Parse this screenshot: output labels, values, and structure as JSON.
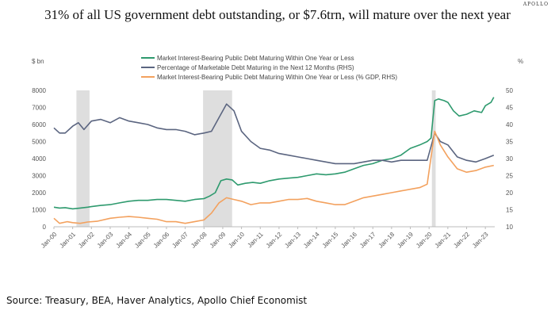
{
  "brand": "APOLLO",
  "title": "31% of all US government debt outstanding, or $7.6trn, will mature over the next year",
  "source": "Source: Treasury, BEA, Haver Analytics, Apollo Chief Economist",
  "chart_data": {
    "type": "line",
    "left_unit": "$ bn",
    "right_unit": "%",
    "left_ylim": [
      0,
      8000
    ],
    "left_ticks": [
      "0",
      "1000",
      "2000",
      "3000",
      "4000",
      "5000",
      "6000",
      "7000",
      "8000"
    ],
    "right_ylim": [
      10,
      50
    ],
    "right_ticks": [
      "10",
      "15",
      "20",
      "25",
      "30",
      "35",
      "40",
      "45",
      "50"
    ],
    "xlim": [
      2000,
      2023.5
    ],
    "x_ticks": [
      "Jan-00",
      "Jan-01",
      "Jan-02",
      "Jan-03",
      "Jan-04",
      "Jan-05",
      "Jan-06",
      "Jan-07",
      "Jan-08",
      "Jan-09",
      "Jan-10",
      "Jan-11",
      "Jan-12",
      "Jan-13",
      "Jan-14",
      "Jan-15",
      "Jan-16",
      "Jan-17",
      "Jan-18",
      "Jan-19",
      "Jan-20",
      "Jan-21",
      "Jan-22",
      "Jan-23"
    ],
    "grid": false,
    "legend_position": "top",
    "recessions": [
      [
        2001.2,
        2001.9
      ],
      [
        2007.95,
        2009.5
      ],
      [
        2020.15,
        2020.35
      ]
    ],
    "series": [
      {
        "name": "Market Interest-Bearing Public Debt Maturing Within One Year or Less",
        "axis": "left",
        "color": "#2e9a6e",
        "x": [
          2000,
          2000.3,
          2000.6,
          2001,
          2001.4,
          2001.8,
          2002,
          2002.5,
          2003,
          2003.5,
          2004,
          2004.5,
          2005,
          2005.5,
          2006,
          2006.5,
          2007,
          2007.5,
          2008,
          2008.3,
          2008.6,
          2008.9,
          2009.2,
          2009.5,
          2009.8,
          2010.2,
          2010.6,
          2011,
          2011.5,
          2012,
          2012.5,
          2013,
          2013.5,
          2014,
          2014.5,
          2015,
          2015.5,
          2016,
          2016.5,
          2017,
          2017.5,
          2018,
          2018.5,
          2019,
          2019.5,
          2019.9,
          2020.1,
          2020.3,
          2020.5,
          2020.8,
          2021,
          2021.3,
          2021.6,
          2022,
          2022.4,
          2022.8,
          2023,
          2023.3,
          2023.45
        ],
        "values": [
          1150,
          1100,
          1120,
          1050,
          1100,
          1150,
          1180,
          1250,
          1300,
          1400,
          1500,
          1550,
          1550,
          1600,
          1600,
          1550,
          1500,
          1600,
          1650,
          1800,
          2000,
          2700,
          2800,
          2750,
          2450,
          2550,
          2600,
          2550,
          2700,
          2800,
          2850,
          2900,
          3000,
          3100,
          3050,
          3100,
          3200,
          3400,
          3600,
          3700,
          3900,
          4000,
          4200,
          4600,
          4800,
          5000,
          5200,
          7400,
          7500,
          7400,
          7300,
          6800,
          6500,
          6600,
          6800,
          6700,
          7100,
          7300,
          7600
        ]
      },
      {
        "name": "Percentage of Marketable Debt Maturing in the Next 12 Months (RHS)",
        "axis": "right",
        "color": "#5b6580",
        "x": [
          2000,
          2000.3,
          2000.6,
          2001,
          2001.3,
          2001.6,
          2002,
          2002.5,
          2003,
          2003.5,
          2004,
          2004.5,
          2005,
          2005.5,
          2006,
          2006.5,
          2007,
          2007.5,
          2008,
          2008.4,
          2008.8,
          2009.2,
          2009.6,
          2010,
          2010.5,
          2011,
          2011.5,
          2012,
          2012.5,
          2013,
          2013.5,
          2014,
          2014.5,
          2015,
          2015.5,
          2016,
          2016.5,
          2017,
          2017.5,
          2018,
          2018.5,
          2019,
          2019.5,
          2019.9,
          2020.3,
          2020.6,
          2021,
          2021.5,
          2022,
          2022.5,
          2023,
          2023.45
        ],
        "values": [
          39,
          37.5,
          37.5,
          39.5,
          40.5,
          38.5,
          41,
          41.5,
          40.5,
          42,
          41,
          40.5,
          40,
          39,
          38.5,
          38.5,
          38,
          37,
          37.5,
          38,
          42,
          46,
          44,
          38,
          35,
          33,
          32.5,
          31.5,
          31,
          30.5,
          30,
          29.5,
          29,
          28.5,
          28.5,
          28.5,
          29,
          29.5,
          29.5,
          29,
          29.5,
          29.5,
          29.5,
          29.5,
          37.5,
          35,
          34,
          30.5,
          29.5,
          29,
          30,
          31
        ]
      },
      {
        "name": "Market Interest-Bearing Public Debt Maturing Within One Year or Less (% GDP, RHS)",
        "axis": "right",
        "color": "#f3a15e",
        "x": [
          2000,
          2000.3,
          2000.7,
          2001,
          2001.4,
          2001.8,
          2002.3,
          2003,
          2003.5,
          2004,
          2004.5,
          2005,
          2005.5,
          2006,
          2006.5,
          2007,
          2007.5,
          2008,
          2008.4,
          2008.8,
          2009.2,
          2009.6,
          2010,
          2010.5,
          2011,
          2011.5,
          2012,
          2012.5,
          2013,
          2013.5,
          2014,
          2014.5,
          2015,
          2015.5,
          2016,
          2016.5,
          2017,
          2017.5,
          2018,
          2018.5,
          2019,
          2019.5,
          2019.9,
          2020.3,
          2020.6,
          2021,
          2021.5,
          2022,
          2022.5,
          2023,
          2023.45
        ],
        "values": [
          12.5,
          11,
          11.5,
          11.2,
          11,
          11.4,
          11.6,
          12.5,
          12.8,
          13,
          12.8,
          12.5,
          12.2,
          11.5,
          11.5,
          11,
          11.5,
          12,
          14,
          17,
          18.5,
          18,
          17.5,
          16.5,
          17,
          17,
          17.5,
          18,
          18,
          18.3,
          17.5,
          17,
          16.5,
          16.5,
          17.5,
          18.5,
          19,
          19.5,
          20,
          20.5,
          21,
          21.5,
          22.5,
          38,
          34,
          30.5,
          27,
          26,
          26.5,
          27.5,
          28
        ]
      }
    ]
  }
}
